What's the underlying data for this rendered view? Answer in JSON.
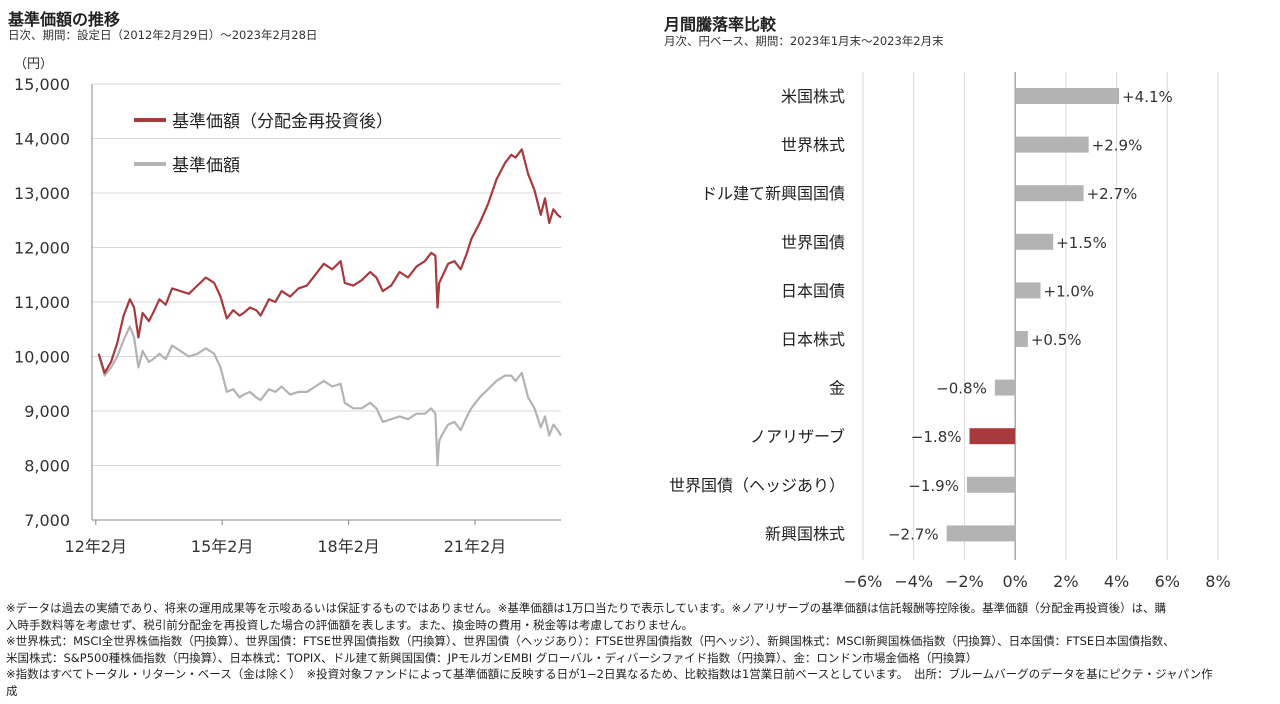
{
  "left": {
    "title": "基準価額の推移",
    "subtitle": "日次、期間：設定日（2012年2月29日）〜2023年2月28日"
  },
  "right": {
    "title": "月間騰落率比較",
    "subtitle": "月次、円ベース、期間：2023年1月末〜2023年2月末"
  },
  "chart_data": [
    {
      "type": "line",
      "unit_label": "（円）",
      "ylim": [
        7000,
        15000
      ],
      "yticks": [
        "15,000",
        "14,000",
        "13,000",
        "12,000",
        "11,000",
        "10,000",
        "9,000",
        "8,000",
        "7,000"
      ],
      "xticks": [
        "12年2月",
        "15年2月",
        "18年2月",
        "21年2月"
      ],
      "xlim_year": [
        2012.0,
        2023.13
      ],
      "grid": true,
      "legend_position": "top-left",
      "series": [
        {
          "name": "基準価額（分配金再投資後）",
          "color": "#a8393d",
          "x": [
            2012.16,
            2012.3,
            2012.45,
            2012.6,
            2012.75,
            2012.9,
            2013.0,
            2013.1,
            2013.2,
            2013.35,
            2013.45,
            2013.6,
            2013.75,
            2013.9,
            2014.1,
            2014.3,
            2014.5,
            2014.7,
            2014.9,
            2015.05,
            2015.2,
            2015.35,
            2015.5,
            2015.6,
            2015.75,
            2015.9,
            2016.0,
            2016.2,
            2016.35,
            2016.5,
            2016.7,
            2016.9,
            2017.1,
            2017.3,
            2017.5,
            2017.7,
            2017.9,
            2018.0,
            2018.2,
            2018.4,
            2018.6,
            2018.75,
            2018.9,
            2019.1,
            2019.3,
            2019.5,
            2019.7,
            2019.9,
            2020.05,
            2020.15,
            2020.2,
            2020.24,
            2020.3,
            2020.45,
            2020.6,
            2020.75,
            2020.9,
            2021.0,
            2021.2,
            2021.4,
            2021.6,
            2021.8,
            2021.95,
            2022.05,
            2022.2,
            2022.35,
            2022.5,
            2022.65,
            2022.75,
            2022.85,
            2022.95,
            2023.05,
            2023.13
          ],
          "y": [
            10050,
            9700,
            9900,
            10250,
            10750,
            11050,
            10900,
            10350,
            10800,
            10650,
            10800,
            11050,
            10950,
            11250,
            11200,
            11150,
            11300,
            11450,
            11350,
            11100,
            10700,
            10850,
            10750,
            10800,
            10900,
            10850,
            10750,
            11050,
            11000,
            11200,
            11100,
            11250,
            11300,
            11500,
            11700,
            11600,
            11750,
            11350,
            11300,
            11400,
            11550,
            11450,
            11200,
            11300,
            11550,
            11450,
            11650,
            11750,
            11900,
            11850,
            10900,
            11350,
            11450,
            11700,
            11750,
            11600,
            11900,
            12150,
            12450,
            12800,
            13250,
            13550,
            13700,
            13650,
            13800,
            13350,
            13050,
            12600,
            12900,
            12450,
            12700,
            12600,
            12550
          ]
        },
        {
          "name": "基準価額",
          "color": "#b3b3b3",
          "x": [
            2012.16,
            2012.3,
            2012.45,
            2012.6,
            2012.75,
            2012.9,
            2013.0,
            2013.1,
            2013.2,
            2013.35,
            2013.45,
            2013.6,
            2013.75,
            2013.9,
            2014.1,
            2014.3,
            2014.5,
            2014.7,
            2014.9,
            2015.05,
            2015.2,
            2015.35,
            2015.5,
            2015.6,
            2015.75,
            2015.9,
            2016.0,
            2016.2,
            2016.35,
            2016.5,
            2016.7,
            2016.9,
            2017.1,
            2017.3,
            2017.5,
            2017.7,
            2017.9,
            2018.0,
            2018.2,
            2018.4,
            2018.6,
            2018.75,
            2018.9,
            2019.1,
            2019.3,
            2019.5,
            2019.7,
            2019.9,
            2020.05,
            2020.15,
            2020.2,
            2020.24,
            2020.3,
            2020.45,
            2020.6,
            2020.75,
            2020.9,
            2021.0,
            2021.2,
            2021.4,
            2021.6,
            2021.8,
            2021.95,
            2022.05,
            2022.2,
            2022.35,
            2022.5,
            2022.65,
            2022.75,
            2022.85,
            2022.95,
            2023.05,
            2023.13
          ],
          "y": [
            10050,
            9650,
            9800,
            10000,
            10300,
            10550,
            10350,
            9800,
            10100,
            9900,
            9950,
            10050,
            9950,
            10200,
            10100,
            10000,
            10050,
            10150,
            10050,
            9800,
            9350,
            9400,
            9250,
            9300,
            9350,
            9250,
            9200,
            9400,
            9350,
            9450,
            9300,
            9350,
            9350,
            9450,
            9550,
            9450,
            9500,
            9150,
            9050,
            9050,
            9150,
            9050,
            8800,
            8850,
            8900,
            8850,
            8950,
            8950,
            9050,
            8950,
            8000,
            8450,
            8550,
            8750,
            8800,
            8650,
            8900,
            9050,
            9250,
            9400,
            9550,
            9650,
            9650,
            9550,
            9700,
            9250,
            9050,
            8700,
            8900,
            8550,
            8750,
            8650,
            8550
          ]
        }
      ]
    },
    {
      "type": "bar",
      "orientation": "horizontal",
      "categories": [
        "米国株式",
        "世界株式",
        "ドル建て新興国国債",
        "世界国債",
        "日本国債",
        "日本株式",
        "金",
        "ノアリザーブ",
        "世界国債（ヘッジあり）",
        "新興国株式"
      ],
      "values": [
        4.1,
        2.9,
        2.7,
        1.5,
        1.0,
        0.5,
        -0.8,
        -1.8,
        -1.9,
        -2.7
      ],
      "value_labels": [
        "+4.1%",
        "+2.9%",
        "+2.7%",
        "+1.5%",
        "+1.0%",
        "+0.5%",
        "−0.8%",
        "−1.8%",
        "−1.9%",
        "−2.7%"
      ],
      "highlight_index": 7,
      "bar_color": "#b3b3b3",
      "highlight_color": "#a8393d",
      "xlim": [
        -6,
        8
      ],
      "xticks": [
        "−6%",
        "−4%",
        "−2%",
        "0%",
        "2%",
        "4%",
        "6%",
        "8%"
      ],
      "grid": true
    }
  ],
  "notes": [
    "※データは過去の実績であり、将来の運用成果等を示唆あるいは保証するものではありません。※基準価額は1万口当たりで表示しています。※ノアリザーブの基準価額は信託報酬等控除後。基準価額（分配金再投資後）は、購",
    "入時手数料等を考慮せず、税引前分配金を再投資した場合の評価額を表します。また、換金時の費用・税金等は考慮しておりません。",
    "※世界株式：MSCI全世界株価指数（円換算）、世界国債：FTSE世界国債指数（円換算）、世界国債（ヘッジあり）：FTSE世界国債指数（円ヘッジ）、新興国株式：MSCI新興国株価指数（円換算）、日本国債：FTSE日本国債指数、",
    "米国株式：S&P500種株価指数（円換算）、日本株式：TOPIX、ドル建て新興国国債：JPモルガンEMBI グローバル・ディバーシファイド指数（円換算）、金：ロンドン市場金価格（円換算）",
    "※指数はすべてトータル・リターン・ベース（金は除く）　※投資対象ファンドによって基準価額に反映する日が1−2日異なるため、比較指数は1営業日前ベースとしています。　出所：ブルームバーグのデータを基にピクテ・ジャパン作",
    "成"
  ]
}
